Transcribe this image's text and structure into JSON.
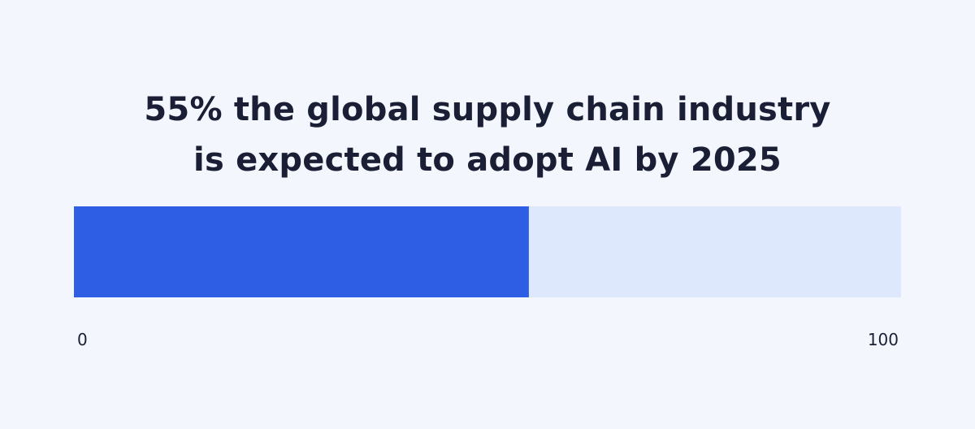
{
  "title_lines": [
    "55% the global supply chain industry",
    "is expected to adopt AI by 2025"
  ],
  "chart_data": {
    "type": "bar",
    "orientation": "horizontal",
    "values": [
      55
    ],
    "xlim": [
      0,
      100
    ],
    "tick_labels": [
      "0",
      "100"
    ],
    "title": "55% the global supply chain industry is expected to adopt AI by 2025",
    "xlabel": "",
    "ylabel": "",
    "grid": false,
    "legend": "none",
    "colors": {
      "fill": "#2d5ee4",
      "track": "#dde8fd",
      "text": "#1a1f36",
      "background": "#f3f7fd"
    }
  }
}
